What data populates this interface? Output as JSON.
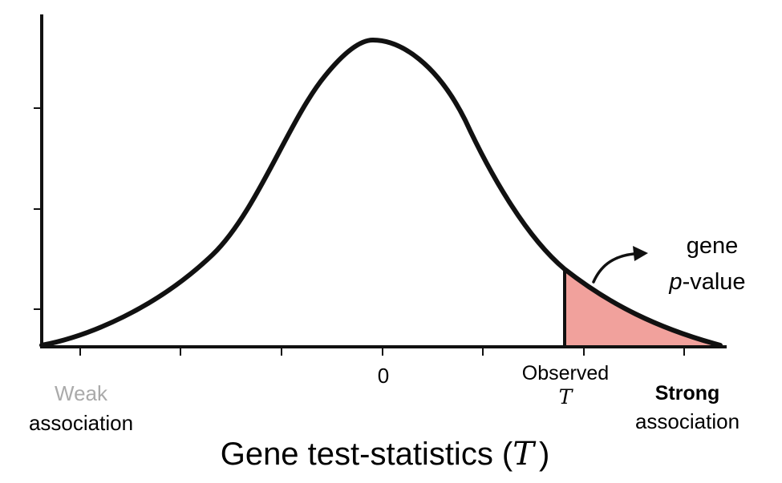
{
  "figure": {
    "x_tick_zero": "0",
    "observed_label": "Observed",
    "observed_symbol": "T",
    "weak_word": "Weak",
    "weak_sub": "association",
    "strong_word": "Strong",
    "strong_sub": "association",
    "annotation_line1": "gene",
    "annotation_p": "p",
    "annotation_rest": "-value",
    "xlabel_main": "Gene test-statistics (",
    "xlabel_symbol": "T",
    "xlabel_close": ")"
  },
  "colors": {
    "curve": "#111111",
    "tail_fill": "#f1a19c",
    "weak_text": "#aaaaaa",
    "text": "#000000"
  }
}
